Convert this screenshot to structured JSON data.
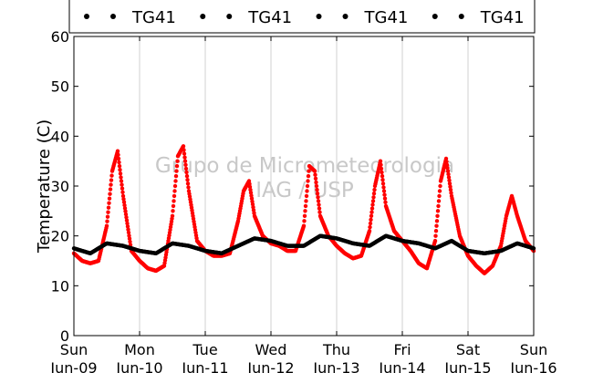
{
  "chart_data": {
    "type": "scatter",
    "title": "",
    "xlabel": "",
    "ylabel": "Temperature (C)",
    "ylim": [
      0,
      60
    ],
    "xlim": [
      "2012-06-09",
      "2012-06-16"
    ],
    "yticks": [
      0,
      10,
      20,
      30,
      40,
      50,
      60
    ],
    "xticks": [
      {
        "date": "2012-06-09",
        "day": "Sun",
        "date_label": "Jun-09"
      },
      {
        "date": "2012-06-10",
        "day": "Mon",
        "date_label": "Jun-10"
      },
      {
        "date": "2012-06-11",
        "day": "Tue",
        "date_label": "Jun-11"
      },
      {
        "date": "2012-06-12",
        "day": "Wed",
        "date_label": "Jun-12"
      },
      {
        "date": "2012-06-13",
        "day": "Thu",
        "date_label": "Jun-13"
      },
      {
        "date": "2012-06-14",
        "day": "Fri",
        "date_label": "Jun-14"
      },
      {
        "date": "2012-06-15",
        "day": "Sat",
        "date_label": "Jun-15"
      },
      {
        "date": "2012-06-16",
        "day": "Sun",
        "date_label": "Jun-16"
      }
    ],
    "grid": "vertical",
    "legend": {
      "position": "top",
      "entries": [
        "TG41",
        "TG41",
        "TG41",
        "TG41"
      ]
    },
    "watermark": [
      "Grupo de Micrometeorologia",
      "IAG / USP"
    ],
    "series": [
      {
        "color": "#ff0000",
        "x": [
          "2012-06-09 00:00",
          "2012-06-09 03:00",
          "2012-06-09 06:00",
          "2012-06-09 09:00",
          "2012-06-09 12:00",
          "2012-06-09 14:00",
          "2012-06-09 16:00",
          "2012-06-09 18:00",
          "2012-06-09 21:00",
          "2012-06-10 00:00",
          "2012-06-10 03:00",
          "2012-06-10 06:00",
          "2012-06-10 09:00",
          "2012-06-10 12:00",
          "2012-06-10 14:00",
          "2012-06-10 16:00",
          "2012-06-10 18:00",
          "2012-06-10 21:00",
          "2012-06-11 00:00",
          "2012-06-11 03:00",
          "2012-06-11 06:00",
          "2012-06-11 09:00",
          "2012-06-11 12:00",
          "2012-06-11 14:00",
          "2012-06-11 16:00",
          "2012-06-11 18:00",
          "2012-06-11 21:00",
          "2012-06-12 00:00",
          "2012-06-12 03:00",
          "2012-06-12 06:00",
          "2012-06-12 09:00",
          "2012-06-12 12:00",
          "2012-06-12 14:00",
          "2012-06-12 16:00",
          "2012-06-12 18:00",
          "2012-06-12 21:00",
          "2012-06-13 00:00",
          "2012-06-13 03:00",
          "2012-06-13 06:00",
          "2012-06-13 09:00",
          "2012-06-13 12:00",
          "2012-06-13 14:00",
          "2012-06-13 16:00",
          "2012-06-13 18:00",
          "2012-06-13 21:00",
          "2012-06-14 00:00",
          "2012-06-14 03:00",
          "2012-06-14 06:00",
          "2012-06-14 09:00",
          "2012-06-14 12:00",
          "2012-06-14 14:00",
          "2012-06-14 16:00",
          "2012-06-14 18:00",
          "2012-06-14 21:00",
          "2012-06-15 00:00",
          "2012-06-15 03:00",
          "2012-06-15 06:00",
          "2012-06-15 09:00",
          "2012-06-15 12:00",
          "2012-06-15 14:00",
          "2012-06-15 16:00",
          "2012-06-15 18:00",
          "2012-06-15 21:00",
          "2012-06-16 00:00"
        ],
        "y": [
          16.5,
          15,
          14.5,
          15,
          22,
          33,
          37,
          28,
          17,
          15,
          13.5,
          13,
          14,
          24,
          36,
          38,
          29,
          19,
          17,
          16,
          16,
          16.5,
          23,
          29,
          31,
          24,
          20,
          18.5,
          18,
          17,
          17,
          22,
          34,
          33,
          24,
          20,
          18,
          16.5,
          15.5,
          16,
          21,
          30,
          35,
          26,
          21,
          19,
          17,
          14.5,
          13.5,
          19,
          31,
          35.5,
          28,
          20,
          16,
          14,
          12.5,
          14,
          18,
          24,
          28,
          24,
          19,
          17
        ]
      },
      {
        "color": "#000000",
        "x": [
          "2012-06-09 00:00",
          "2012-06-09 06:00",
          "2012-06-09 12:00",
          "2012-06-09 18:00",
          "2012-06-10 00:00",
          "2012-06-10 06:00",
          "2012-06-10 12:00",
          "2012-06-10 18:00",
          "2012-06-11 00:00",
          "2012-06-11 06:00",
          "2012-06-11 12:00",
          "2012-06-11 18:00",
          "2012-06-12 00:00",
          "2012-06-12 06:00",
          "2012-06-12 12:00",
          "2012-06-12 18:00",
          "2012-06-13 00:00",
          "2012-06-13 06:00",
          "2012-06-13 12:00",
          "2012-06-13 18:00",
          "2012-06-14 00:00",
          "2012-06-14 06:00",
          "2012-06-14 12:00",
          "2012-06-14 18:00",
          "2012-06-15 00:00",
          "2012-06-15 06:00",
          "2012-06-15 12:00",
          "2012-06-15 18:00",
          "2012-06-16 00:00"
        ],
        "y": [
          17.5,
          16.5,
          18.5,
          18,
          17,
          16.5,
          18.5,
          18,
          17,
          16.5,
          18,
          19.5,
          19,
          18,
          18,
          20,
          19.5,
          18.5,
          18,
          20,
          19,
          18.5,
          17.5,
          19,
          17,
          16.5,
          17,
          18.5,
          17.5
        ]
      }
    ]
  }
}
